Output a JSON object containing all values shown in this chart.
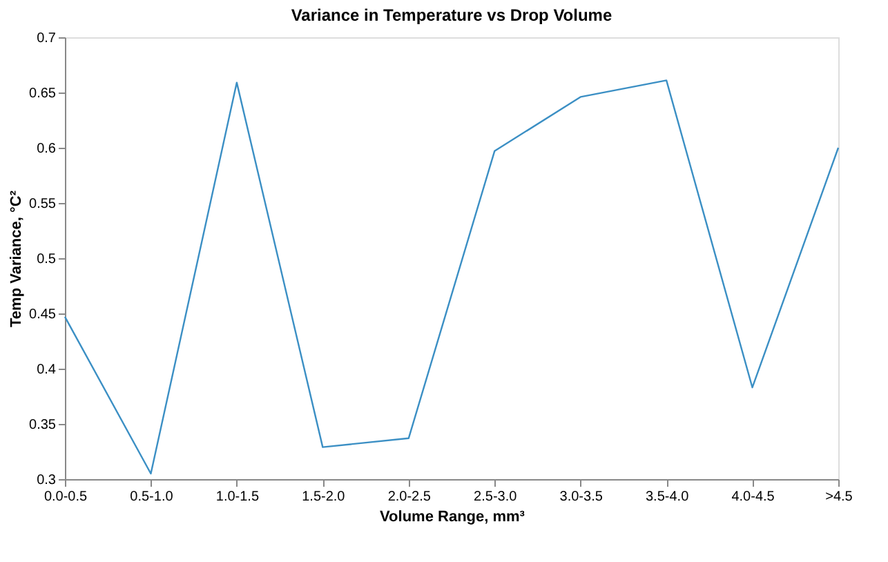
{
  "chart_data": {
    "type": "line",
    "title": "Variance in Temperature vs Drop Volume",
    "xlabel": "Volume Range, mm³",
    "ylabel": "Temp Variance, °C²",
    "categories": [
      "0.0-0.5",
      "0.5-1.0",
      "1.0-1.5",
      "1.5-2.0",
      "2.0-2.5",
      "2.5-3.0",
      "3.0-3.5",
      "3.5-4.0",
      "4.0-4.5",
      ">4.5"
    ],
    "series": [
      {
        "color": "#3b8fc4",
        "values": [
          0.447,
          0.305,
          0.659,
          0.329,
          0.337,
          0.597,
          0.646,
          0.661,
          0.383,
          0.6
        ]
      }
    ],
    "ylim": [
      0.3,
      0.7
    ],
    "yticks": [
      0.3,
      0.35,
      0.4,
      0.45,
      0.5,
      0.55,
      0.6,
      0.65,
      0.7
    ],
    "grid": false,
    "legend": false,
    "marker": "none",
    "line_style": "solid"
  }
}
